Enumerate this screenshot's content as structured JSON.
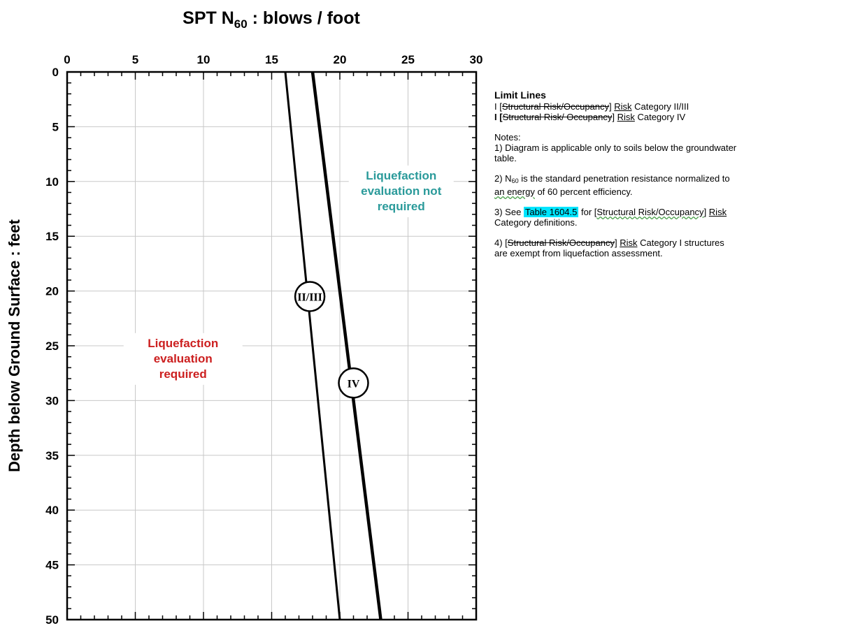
{
  "chart_data": {
    "type": "line",
    "title_prefix": "SPT  N",
    "title_subscript": "60",
    "title_suffix": "  :  blows / foot",
    "xlabel_position": "top",
    "ylabel": "Depth below Ground Surface  :  feet",
    "xlim": [
      0,
      30
    ],
    "ylim": [
      0,
      50
    ],
    "y_inverted": true,
    "x_ticks": [
      "0",
      "5",
      "10",
      "15",
      "20",
      "25",
      "30"
    ],
    "y_ticks": [
      "0",
      "5",
      "10",
      "15",
      "20",
      "25",
      "30",
      "35",
      "40",
      "45",
      "50"
    ],
    "grid": true,
    "series": [
      {
        "name": "II/III",
        "points": [
          [
            16,
            0
          ],
          [
            20,
            50
          ]
        ],
        "label_at": [
          17.8,
          20.5
        ],
        "stroke": "#000000"
      },
      {
        "name": "IV",
        "points": [
          [
            18,
            0
          ],
          [
            23,
            50
          ]
        ],
        "label_at": [
          21,
          28.4
        ],
        "stroke": "#000000"
      }
    ],
    "regions": [
      {
        "lines": [
          "Liquefaction",
          "evaluation",
          "required"
        ],
        "color": "#cc1f1f",
        "at": [
          8.5,
          26.2
        ]
      },
      {
        "lines": [
          "Liquefaction",
          "evaluation not",
          "required"
        ],
        "color": "#2a9a9a",
        "at": [
          24.5,
          10.9
        ]
      }
    ]
  },
  "legend": {
    "heading": "Limit Lines",
    "entries": [
      {
        "prefix": "I [",
        "struck": "Structural Risk/Occupancy",
        "bracket": "] ",
        "underlined": "Risk",
        "suffix": " Category II/III",
        "bold_prefix": false
      },
      {
        "prefix": "I [",
        "struck": "Structural Risk/ Occupancy",
        "bracket": "] ",
        "underlined": "Risk",
        "suffix": " Category IV",
        "bold_prefix": true
      }
    ]
  },
  "notes": {
    "heading": "Notes:",
    "note1_a": "1) Diagram is applicable only to soils below the groundwater",
    "note1_b": "table.",
    "note2_a_pre": "2) N",
    "note2_a_sub": "60",
    "note2_a_post": " is the standard penetration resistance normalized to",
    "note2_b_squiggle": "an energy",
    "note2_b_post": " of 60 percent efficiency.",
    "note3_pre": "3) See ",
    "note3_highlight": "Table 1604.5",
    "note3_mid": "  for [",
    "note3_struck": "Structural Risk/Occupancy",
    "note3_bracket": "] ",
    "note3_underlined": "Risk",
    "note3_b": "Category definitions.",
    "note4_pre": "4) [",
    "note4_struck": "Structural Risk/Occupancy",
    "note4_bracket": "] ",
    "note4_underlined": "Risk",
    "note4_post": " Category I structures",
    "note4_b": "are exempt from liquefaction assessment."
  },
  "colors": {
    "grid": "#c8c8c8",
    "frame": "#000000",
    "highlight": "#00e5ff"
  }
}
